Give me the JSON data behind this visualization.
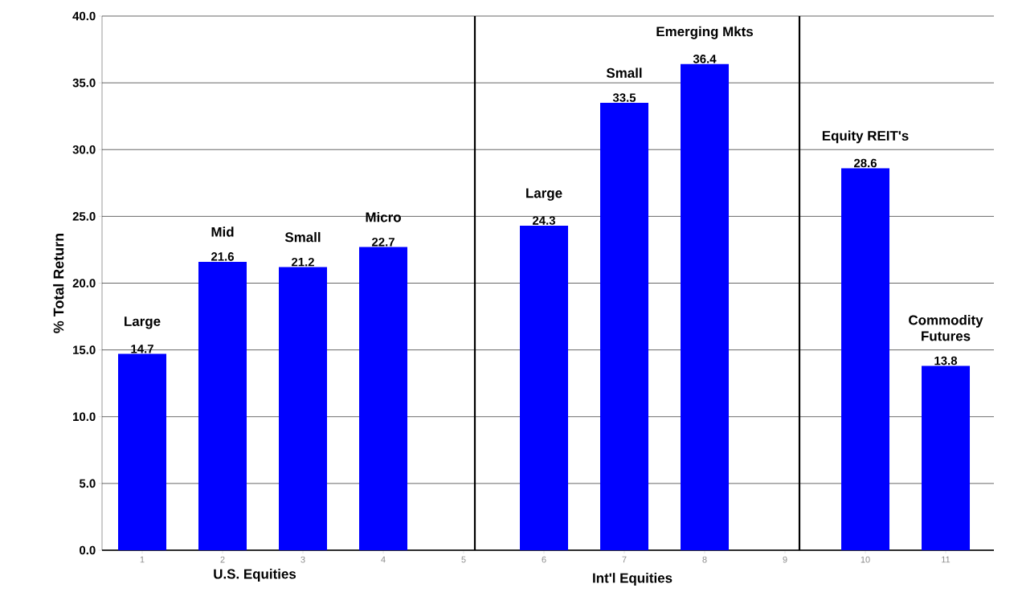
{
  "chart_data": {
    "type": "bar",
    "ylabel": "% Total Return",
    "x": [
      1,
      2,
      3,
      4,
      5,
      6,
      7,
      8,
      9,
      10,
      11
    ],
    "values": [
      14.7,
      21.6,
      21.2,
      22.7,
      null,
      24.3,
      33.5,
      36.4,
      null,
      28.6,
      13.8
    ],
    "color": "#0000ff",
    "data_labels": true,
    "xlim": [
      0.5,
      11.6
    ],
    "xticks": [
      1,
      2,
      3,
      4,
      5,
      6,
      7,
      8,
      9,
      10,
      11
    ],
    "ylim": [
      0,
      40
    ],
    "yticks": [
      {
        "value": 0,
        "label": "0.0"
      },
      {
        "value": 5,
        "label": "5.0"
      },
      {
        "value": 10,
        "label": "10.0"
      },
      {
        "value": 15,
        "label": "15.0"
      },
      {
        "value": 20,
        "label": "20.0"
      },
      {
        "value": 25,
        "label": "25.0"
      },
      {
        "value": 30,
        "label": "30.0"
      },
      {
        "value": 35,
        "label": "35.0"
      },
      {
        "value": 40,
        "label": "40.0"
      }
    ],
    "grid": "y",
    "ref_lines": [
      {
        "axis": "x",
        "value": 5.14,
        "color": "#000000"
      },
      {
        "axis": "x",
        "value": 9.18,
        "color": "#000000"
      }
    ],
    "annotations": [
      {
        "text": "Large",
        "x": 1,
        "y": 14.7
      },
      {
        "text": "Mid",
        "x": 2,
        "y": 21.6
      },
      {
        "text": "Small",
        "x": 3,
        "y": 21.2
      },
      {
        "text": "Micro",
        "x": 4,
        "y": 22.7
      },
      {
        "text": "Large",
        "x": 6,
        "y": 24.3
      },
      {
        "text": "Small",
        "x": 7,
        "y": 33.5
      },
      {
        "text": "Emerging Mkts",
        "x": 8,
        "y": 36.4
      },
      {
        "text": "Equity REIT's",
        "x": 10,
        "y": 28.6
      },
      {
        "text": "Commodity Futures",
        "x": 11,
        "y": 13.8
      },
      "U.S. Equities",
      "Int'l Equities"
    ]
  }
}
